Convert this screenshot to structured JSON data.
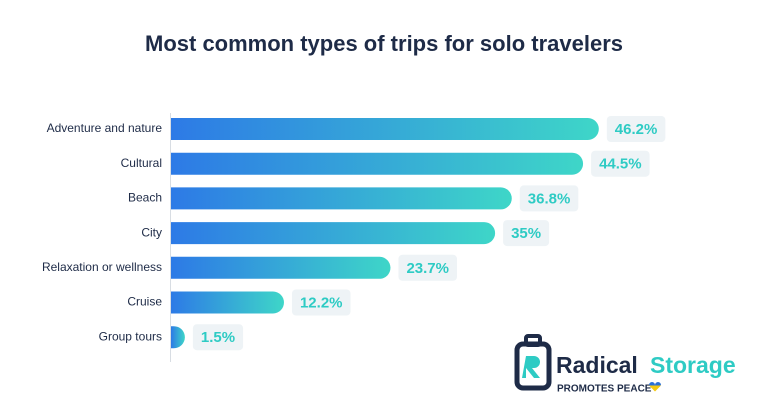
{
  "chart_data": {
    "type": "bar",
    "orientation": "horizontal",
    "title": "Most common types of trips for solo travelers",
    "categories": [
      "Adventure and nature",
      "Cultural",
      "Beach",
      "City",
      "Relaxation or wellness",
      "Cruise",
      "Group tours"
    ],
    "values": [
      46.2,
      44.5,
      36.8,
      35,
      23.7,
      12.2,
      1.5
    ],
    "value_labels": [
      "46.2%",
      "44.5%",
      "36.8%",
      "35%",
      "23.7%",
      "12.2%",
      "1.5%"
    ],
    "gradient": [
      "#2d7ae6",
      "#3ed6c8"
    ]
  },
  "logo": {
    "word1": "Radical",
    "word2": "Storage",
    "tagline": "PROMOTES PEACE"
  }
}
